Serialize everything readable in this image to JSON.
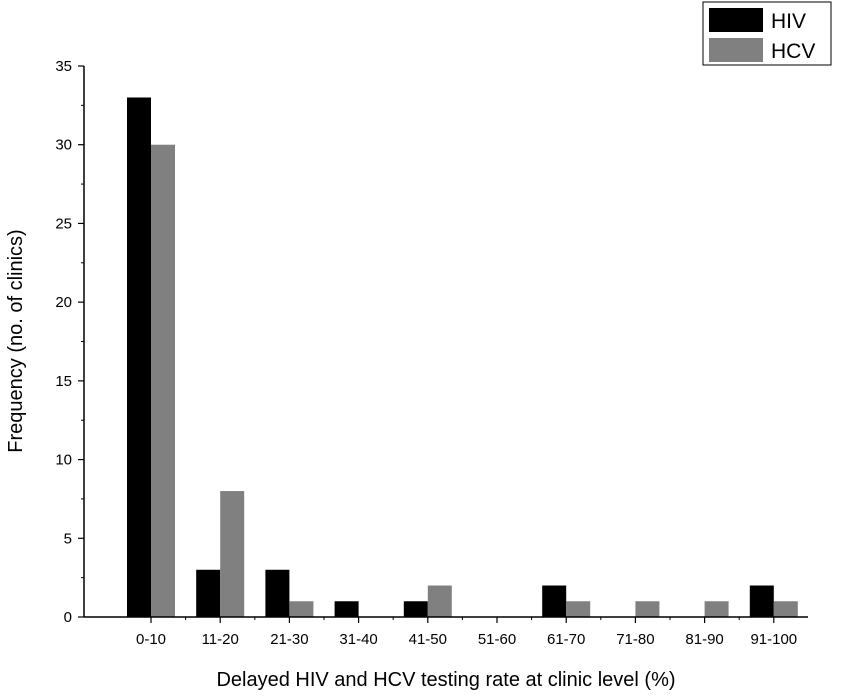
{
  "chart_data": {
    "type": "bar",
    "title": "",
    "xlabel": "Delayed HIV and HCV testing rate at clinic level (%)",
    "ylabel": "Frequency (no. of clinics)",
    "ylim": [
      0,
      35
    ],
    "yticks": [
      0,
      5,
      10,
      15,
      20,
      25,
      30,
      35
    ],
    "grid": false,
    "legend_position": "top-right",
    "categories": [
      "0-10",
      "11-20",
      "21-30",
      "31-40",
      "41-50",
      "51-60",
      "61-70",
      "71-80",
      "81-90",
      "91-100"
    ],
    "series": [
      {
        "name": "HIV",
        "color": "#000000",
        "values": [
          33,
          3,
          3,
          1,
          1,
          0,
          2,
          0,
          0,
          2
        ]
      },
      {
        "name": "HCV",
        "color": "#808080",
        "values": [
          30,
          8,
          1,
          0,
          2,
          0,
          1,
          1,
          1,
          1
        ]
      }
    ]
  }
}
